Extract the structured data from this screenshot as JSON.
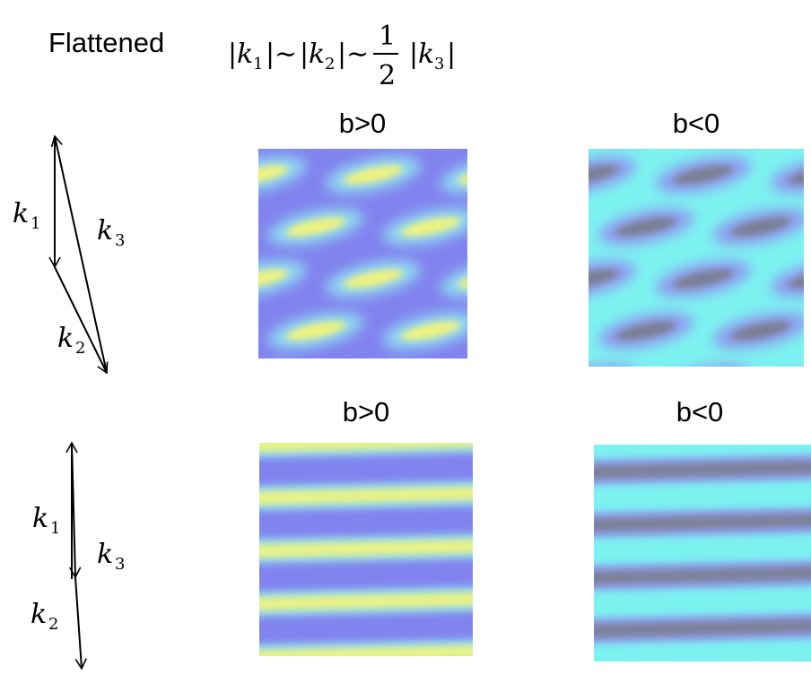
{
  "header": {
    "title": "Flattened",
    "formula": {
      "bar": "|",
      "k": "k",
      "sim": "∼",
      "sub1": "1",
      "sub2": "2",
      "sub3": "3",
      "frac_num": "1",
      "frac_den": "2"
    }
  },
  "panels": {
    "top_left_label": "b>0",
    "top_right_label": "b<0",
    "bottom_left_label": "b>0",
    "bottom_right_label": "b<0"
  },
  "vectors": {
    "k1": "k",
    "k1_sub": "1",
    "k2": "k",
    "k2_sub": "2",
    "k3": "k",
    "k3_sub": "3"
  },
  "colors": {
    "purple": "#7f82ee",
    "yellow": "#f2f57a",
    "cyan": "#7cf4f2",
    "gray": "#7a7f93",
    "mid_blue": "#8fc0f2"
  }
}
